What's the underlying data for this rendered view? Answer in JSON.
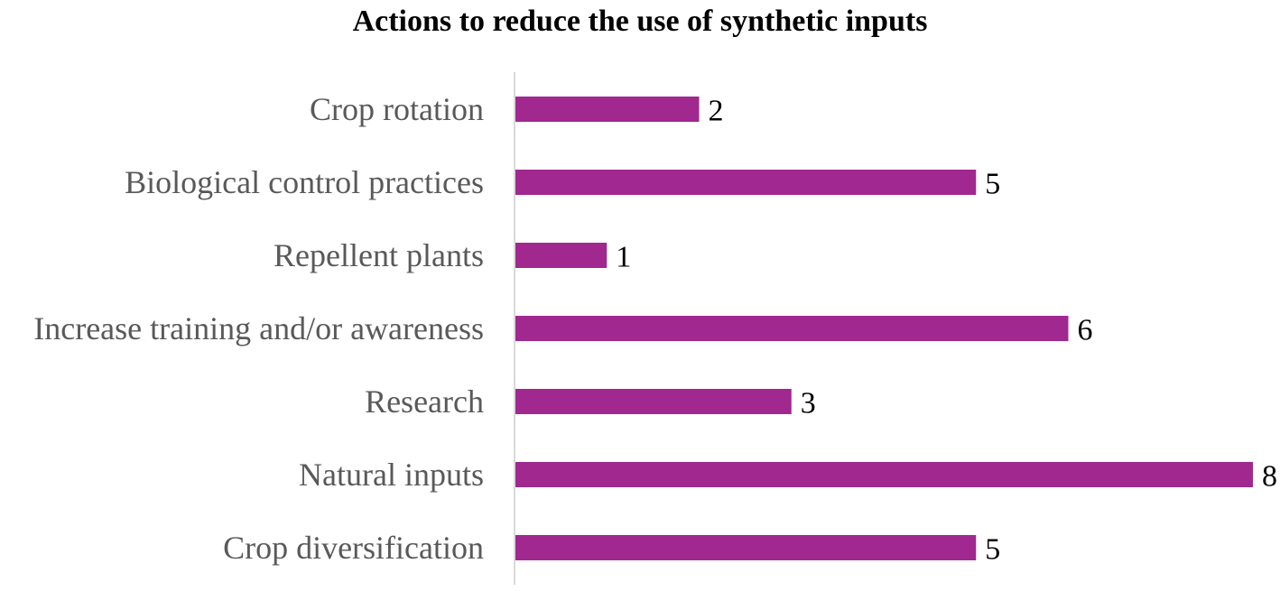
{
  "chart_data": {
    "type": "bar",
    "orientation": "horizontal",
    "title": "Actions to reduce the use of synthetic inputs",
    "categories": [
      "Crop rotation",
      "Biological control practices",
      "Repellent plants",
      "Increase training and/or awareness",
      "Research",
      "Natural inputs",
      "Crop diversification"
    ],
    "values": [
      2,
      5,
      1,
      6,
      3,
      8,
      5
    ],
    "xlim": [
      0,
      8
    ],
    "data_labels": true,
    "grid": false,
    "legend": "none",
    "bar_color": "#A0288F",
    "axis_color": "#D9D9D9"
  }
}
